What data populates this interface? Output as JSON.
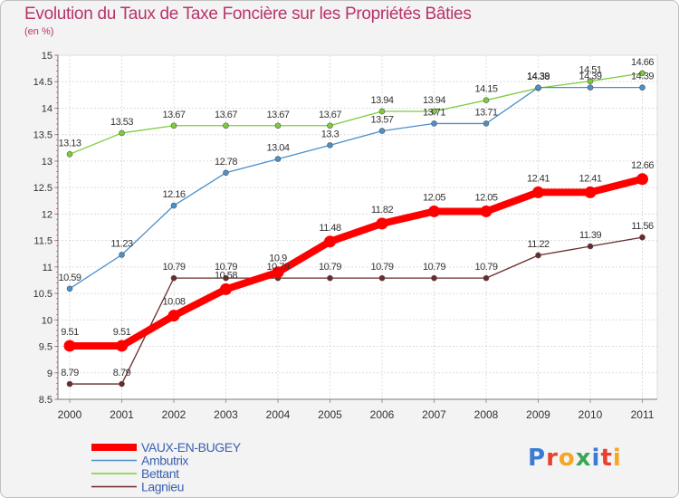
{
  "title": "Evolution du Taux de Taxe Foncière sur les Propriétés Bâties",
  "subtitle": "(en %)",
  "logo_text": "Proxiti",
  "chart_data": {
    "type": "line",
    "x": [
      "2000",
      "2001",
      "2002",
      "2003",
      "2004",
      "2005",
      "2006",
      "2007",
      "2008",
      "2009",
      "2010",
      "2011"
    ],
    "ylim": [
      8.5,
      15
    ],
    "yticks": [
      "8.5",
      "9",
      "9.5",
      "10",
      "10.5",
      "11",
      "11.5",
      "12",
      "12.5",
      "13",
      "13.5",
      "14",
      "14.5",
      "15"
    ],
    "grid": true,
    "legend_position": "bottom-left",
    "series": [
      {
        "name": "VAUX-EN-BUGEY",
        "color": "#ff0000",
        "bold": true,
        "values": [
          9.51,
          9.51,
          10.08,
          10.58,
          10.9,
          11.48,
          11.82,
          12.05,
          12.05,
          12.41,
          12.41,
          12.66
        ],
        "labels": [
          "9.51",
          "9.51",
          "10.08",
          "10.58",
          "10.9",
          "11.48",
          "11.82",
          "12.05",
          "12.05",
          "12.41",
          "12.41",
          "12.66"
        ]
      },
      {
        "name": "Ambutrix",
        "color": "#4a90c9",
        "values": [
          10.59,
          11.23,
          12.16,
          12.78,
          13.04,
          13.3,
          13.57,
          13.71,
          13.71,
          14.39,
          14.39,
          14.39
        ],
        "labels": [
          "10.59",
          "11.23",
          "12.16",
          "12.78",
          "13.04",
          "13.3",
          "13.57",
          "13.71",
          "13.71",
          "14.39",
          "14.39",
          "14.39"
        ]
      },
      {
        "name": "Bettant",
        "color": "#7dcc3c",
        "values": [
          13.13,
          13.53,
          13.67,
          13.67,
          13.67,
          13.67,
          13.94,
          13.94,
          14.15,
          14.38,
          14.51,
          14.66
        ],
        "labels": [
          "13.13",
          "13.53",
          "13.67",
          "13.67",
          "13.67",
          "13.67",
          "13.94",
          "13.94",
          "14.15",
          "14.38",
          "14.51",
          "14.66"
        ]
      },
      {
        "name": "Lagnieu",
        "color": "#6b2a2a",
        "values": [
          8.79,
          8.79,
          10.79,
          10.79,
          10.79,
          10.79,
          10.79,
          10.79,
          10.79,
          11.22,
          11.39,
          11.56
        ],
        "labels": [
          "8.79",
          "8.79",
          "10.79",
          "10.79",
          "10.79",
          "10.79",
          "10.79",
          "10.79",
          "10.79",
          "11.22",
          "11.39",
          "11.56"
        ]
      }
    ]
  }
}
